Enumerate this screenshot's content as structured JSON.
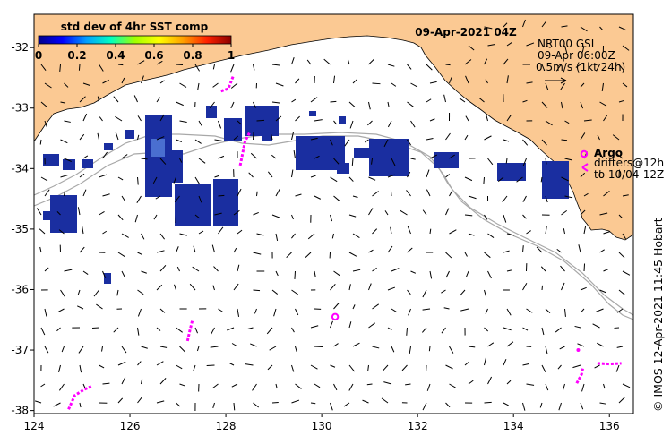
{
  "title": "09-Apr-2021 04Z",
  "colorbar": {
    "label": "std dev of 4hr SST comp",
    "ticks": [
      "0",
      "0.2",
      "0.4",
      "0.6",
      "0.8",
      "1"
    ],
    "colors": [
      "#00008b",
      "#0000ff",
      "#00a0ff",
      "#00ffc0",
      "#a0ff00",
      "#ffff00",
      "#ffa000",
      "#ff2000",
      "#8b0000"
    ]
  },
  "current_info": {
    "source": "NRT00 GSL",
    "time": "09-Apr 06:00Z",
    "scale": "0.5m/s (1kt 24h)"
  },
  "legend": {
    "argo_label": "Argo",
    "drifter_label": "drifters@12h",
    "drifter_to": "to 10/04-12Z"
  },
  "credit": "© IMOS 12-Apr-2021 11:45 Hobart",
  "axes": {
    "lon_ticks": [
      "124",
      "126",
      "128",
      "130",
      "132",
      "134",
      "136"
    ],
    "lat_ticks": [
      "-32",
      "-33",
      "-34",
      "-35",
      "-36",
      "-37",
      "-38"
    ],
    "lon_range": [
      124,
      136.5
    ],
    "lat_range": [
      -31.45,
      -38.05
    ]
  },
  "colors": {
    "land": "#fbc993",
    "ocean": "#ffffff",
    "sst_patch": "#1a2ea0",
    "contour": "#a8a8a8",
    "marker": "#ff00ff"
  },
  "argo_floats": [
    {
      "lon": 130.28,
      "lat": -36.45
    }
  ],
  "drifters": [
    {
      "lon": [
        124.72,
        124.85,
        125.05,
        125.2
      ],
      "lat": [
        -37.98,
        -37.75,
        -37.65,
        -37.6
      ]
    },
    {
      "lon": [
        127.2,
        127.25,
        127.3
      ],
      "lat": [
        -36.85,
        -36.68,
        -36.52
      ]
    },
    {
      "lon": [
        135.32,
        135.42,
        135.45
      ],
      "lat": [
        -37.55,
        -37.4,
        -37.28
      ]
    },
    {
      "lon": [
        135.75,
        136.0,
        136.25
      ],
      "lat": [
        -37.22,
        -37.23,
        -37.22
      ]
    },
    {
      "lon": [
        127.9,
        128.05,
        128.15
      ],
      "lat": [
        -32.72,
        -32.68,
        -32.48
      ]
    },
    {
      "lon": [
        128.3,
        128.35,
        128.4,
        128.5
      ],
      "lat": [
        -33.95,
        -33.75,
        -33.55,
        -33.4
      ]
    },
    {
      "lon": [
        135.35
      ],
      "lat": [
        -37.0
      ]
    }
  ]
}
